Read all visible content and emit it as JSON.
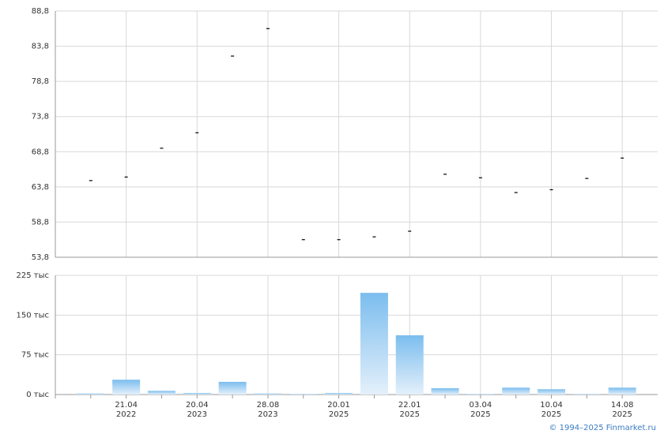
{
  "chart_data": [
    {
      "type": "dash",
      "color": "#000000",
      "grid": true,
      "categories": [
        null,
        [
          "21.04",
          "2022"
        ],
        null,
        [
          "20.04",
          "2023"
        ],
        null,
        [
          "28.08",
          "2023"
        ],
        null,
        [
          "20.01",
          "2025"
        ],
        null,
        [
          "22.01",
          "2025"
        ],
        null,
        [
          "03.04",
          "2025"
        ],
        null,
        [
          "10.04",
          "2025"
        ],
        null,
        [
          "14.08",
          "2025"
        ]
      ],
      "values": [
        64.7,
        65.2,
        69.3,
        71.5,
        82.4,
        86.3,
        56.3,
        56.3,
        56.7,
        57.5,
        65.6,
        65.1,
        63.0,
        63.4,
        65.0,
        67.9
      ],
      "ylim": [
        53.8,
        88.8
      ],
      "yticks": [
        {
          "value": 53.8,
          "label": "53,8"
        },
        {
          "value": 58.8,
          "label": "58,8"
        },
        {
          "value": 63.8,
          "label": "63,8"
        },
        {
          "value": 68.8,
          "label": "68,8"
        },
        {
          "value": 73.8,
          "label": "73,8"
        },
        {
          "value": 78.8,
          "label": "78,8"
        },
        {
          "value": 83.8,
          "label": "83,8"
        },
        {
          "value": 88.8,
          "label": "88,8"
        }
      ]
    },
    {
      "type": "bar",
      "color": "#7bbdee",
      "grid": true,
      "values": [
        2,
        28,
        7,
        3,
        24,
        2,
        1,
        3,
        192,
        112,
        12,
        1,
        13,
        10,
        1,
        13
      ],
      "ylim": [
        0,
        225
      ],
      "yticks": [
        {
          "value": 0,
          "label": "0 тыс"
        },
        {
          "value": 75,
          "label": "75 тыс"
        },
        {
          "value": 150,
          "label": "150 тыс"
        },
        {
          "value": 225,
          "label": "225 тыс"
        }
      ]
    }
  ],
  "footer": "© 1994–2025 Finmarket.ru"
}
